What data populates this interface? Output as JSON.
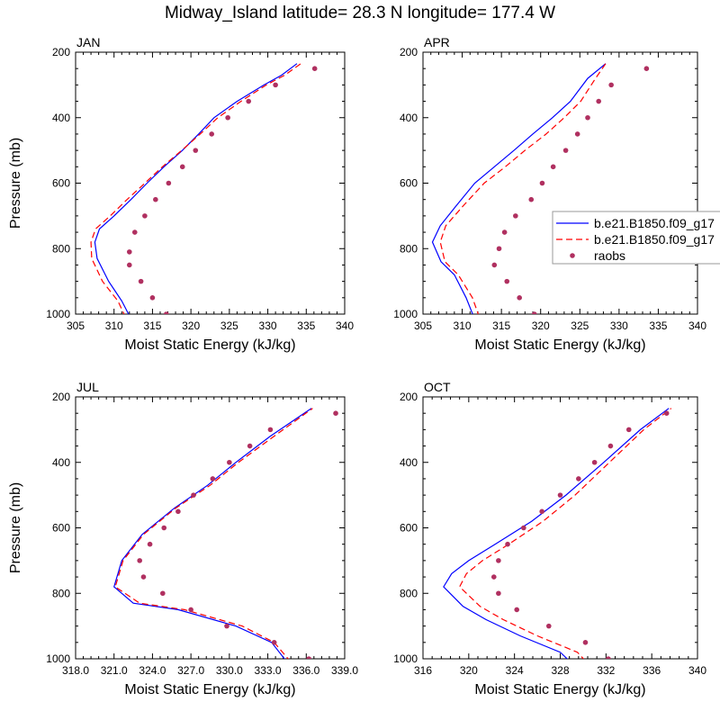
{
  "figure": {
    "title": "Midway_Island  latitude= 28.3 N longitude= 177.4 W"
  },
  "legend": {
    "entries": [
      "b.e21.B1850.f09_g17",
      "b.e21.B1850.f09_g17",
      "raobs"
    ]
  },
  "chart_data": [
    {
      "type": "line",
      "panel": "JAN",
      "title": "JAN",
      "xlabel": "Moist Static Energy (kJ/kg)",
      "ylabel": "Pressure (mb)",
      "xlim": [
        305,
        340
      ],
      "ylim": [
        1000,
        200
      ],
      "y_reversed": true,
      "xticks": [
        "305",
        "310",
        "315",
        "320",
        "325",
        "330",
        "335",
        "340"
      ],
      "yticks": [
        "200",
        "400",
        "600",
        "800",
        "1000"
      ],
      "series": [
        {
          "name": "b.e21.B1850.f09_g17",
          "style": "solid",
          "color": "#0000ff",
          "x": [
            312.1,
            311.0,
            309.3,
            307.8,
            307.5,
            308.1,
            310.0,
            312.2,
            314.3,
            316.5,
            318.9,
            321.0,
            323.0,
            326.0,
            329.5,
            331.8,
            333.8
          ],
          "y": [
            1010,
            960,
            900,
            830,
            780,
            740,
            700,
            650,
            600,
            550,
            500,
            450,
            400,
            350,
            300,
            270,
            235
          ]
        },
        {
          "name": "b.e21.B1850.f09_g17",
          "style": "dashed",
          "color": "#ff0000",
          "x": [
            311.5,
            310.5,
            308.5,
            307.1,
            307.0,
            307.6,
            309.5,
            311.7,
            314.0,
            316.3,
            318.8,
            321.2,
            323.5,
            326.5,
            329.8,
            332.2,
            334.3
          ],
          "y": [
            1010,
            960,
            900,
            830,
            780,
            740,
            700,
            650,
            600,
            550,
            500,
            450,
            400,
            350,
            300,
            270,
            235
          ]
        },
        {
          "name": "raobs",
          "style": "marker",
          "color": "#b03060",
          "x": [
            316.8,
            315.0,
            313.5,
            312.0,
            312.0,
            312.7,
            314.0,
            315.4,
            317.1,
            318.9,
            320.6,
            322.7,
            324.8,
            327.5,
            331.0,
            336.1
          ],
          "y": [
            1000,
            950,
            900,
            850,
            810,
            750,
            700,
            650,
            600,
            550,
            500,
            450,
            400,
            350,
            300,
            250
          ]
        }
      ]
    },
    {
      "type": "line",
      "panel": "APR",
      "title": "APR",
      "xlabel": "Moist Static Energy (kJ/kg)",
      "ylabel": "",
      "xlim": [
        305,
        340
      ],
      "ylim": [
        1000,
        200
      ],
      "y_reversed": true,
      "xticks": [
        "305",
        "310",
        "315",
        "320",
        "325",
        "330",
        "335",
        "340"
      ],
      "yticks": [
        "200",
        "400",
        "600",
        "800",
        "1000"
      ],
      "series": [
        {
          "name": "b.e21.B1850.f09_g17",
          "style": "solid",
          "color": "#0000ff",
          "x": [
            311.5,
            310.5,
            309.0,
            307.3,
            306.2,
            307.2,
            309.2,
            311.6,
            314.1,
            316.6,
            319.0,
            321.5,
            323.8,
            326.0,
            328.3
          ],
          "y": [
            1010,
            950,
            880,
            840,
            780,
            730,
            670,
            600,
            550,
            500,
            450,
            400,
            350,
            280,
            235
          ]
        },
        {
          "name": "b.e21.B1850.f09_g17",
          "style": "dashed",
          "color": "#ff0000",
          "x": [
            312.2,
            311.3,
            309.5,
            307.8,
            307.2,
            307.9,
            310.1,
            312.8,
            315.5,
            318.0,
            320.7,
            323.0,
            325.1,
            327.0,
            328.3
          ],
          "y": [
            1010,
            950,
            880,
            840,
            780,
            730,
            670,
            600,
            550,
            500,
            450,
            400,
            350,
            280,
            235
          ]
        },
        {
          "name": "raobs",
          "style": "marker",
          "color": "#b03060",
          "x": [
            319.2,
            317.3,
            315.7,
            314.1,
            314.7,
            315.4,
            316.8,
            318.8,
            320.2,
            321.6,
            323.2,
            324.7,
            326.0,
            327.4,
            329.0,
            333.5
          ],
          "y": [
            1000,
            950,
            900,
            850,
            800,
            750,
            700,
            650,
            600,
            550,
            500,
            450,
            400,
            350,
            300,
            250
          ]
        }
      ]
    },
    {
      "type": "line",
      "panel": "JUL",
      "title": "JUL",
      "xlabel": "Moist Static Energy (kJ/kg)",
      "ylabel": "Pressure (mb)",
      "xlim": [
        318,
        339
      ],
      "ylim": [
        1000,
        200
      ],
      "y_reversed": true,
      "xticks": [
        "318.0",
        "321.0",
        "324.0",
        "327.0",
        "330.0",
        "333.0",
        "336.0",
        "339.0"
      ],
      "yticks": [
        "200",
        "400",
        "600",
        "800",
        "1000"
      ],
      "series": [
        {
          "name": "b.e21.B1850.f09_g17",
          "style": "solid",
          "color": "#0000ff",
          "x": [
            334.5,
            333.3,
            330.5,
            326.0,
            322.5,
            321.0,
            321.6,
            323.2,
            325.7,
            328.3,
            330.5,
            333.2,
            336.4
          ],
          "y": [
            1010,
            950,
            900,
            850,
            830,
            780,
            700,
            620,
            540,
            470,
            400,
            320,
            235
          ]
        },
        {
          "name": "b.e21.B1850.f09_g17",
          "style": "dashed",
          "color": "#ff0000",
          "x": [
            334.8,
            333.5,
            331.0,
            326.5,
            323.0,
            321.1,
            321.7,
            323.3,
            325.8,
            328.5,
            330.7,
            333.5,
            336.5
          ],
          "y": [
            1010,
            950,
            900,
            850,
            830,
            780,
            700,
            620,
            540,
            470,
            400,
            320,
            235
          ]
        },
        {
          "name": "raobs",
          "style": "marker",
          "color": "#b03060",
          "x": [
            336.2,
            333.5,
            329.8,
            327.0,
            324.8,
            323.3,
            323.0,
            323.8,
            324.9,
            326.0,
            327.2,
            328.7,
            330.0,
            331.6,
            333.2,
            338.3
          ],
          "y": [
            1000,
            950,
            900,
            850,
            800,
            750,
            700,
            650,
            600,
            550,
            500,
            450,
            400,
            350,
            300,
            250
          ]
        }
      ]
    },
    {
      "type": "line",
      "panel": "OCT",
      "title": "OCT",
      "xlabel": "Moist Static Energy (kJ/kg)",
      "ylabel": "",
      "xlim": [
        316,
        340
      ],
      "ylim": [
        1000,
        200
      ],
      "y_reversed": true,
      "xticks": [
        "316",
        "320",
        "324",
        "328",
        "332",
        "336",
        "340"
      ],
      "yticks": [
        "200",
        "400",
        "600",
        "800",
        "1000"
      ],
      "series": [
        {
          "name": "b.e21.B1850.f09_g17",
          "style": "solid",
          "color": "#0000ff",
          "x": [
            329.5,
            328.0,
            324.5,
            321.5,
            319.5,
            317.8,
            318.5,
            320.0,
            322.3,
            325.5,
            328.5,
            331.8,
            335.0,
            337.5
          ],
          "y": [
            1030,
            980,
            930,
            880,
            840,
            780,
            740,
            700,
            650,
            580,
            500,
            400,
            300,
            235
          ]
        },
        {
          "name": "b.e21.B1850.f09_g17",
          "style": "dashed",
          "color": "#ff0000",
          "x": [
            330.8,
            329.5,
            326.0,
            323.0,
            321.0,
            319.2,
            319.8,
            321.2,
            323.5,
            326.5,
            329.3,
            332.3,
            335.3,
            337.7
          ],
          "y": [
            1030,
            980,
            930,
            880,
            840,
            780,
            740,
            700,
            650,
            580,
            500,
            400,
            300,
            235
          ]
        },
        {
          "name": "raobs",
          "style": "marker",
          "color": "#b03060",
          "x": [
            332.2,
            330.2,
            327.0,
            324.2,
            322.6,
            322.2,
            322.6,
            323.4,
            324.8,
            326.4,
            328.0,
            329.6,
            331.0,
            332.4,
            334.0,
            337.3
          ],
          "y": [
            1000,
            950,
            900,
            850,
            800,
            750,
            700,
            650,
            600,
            550,
            500,
            450,
            400,
            350,
            300,
            250
          ]
        }
      ]
    }
  ]
}
